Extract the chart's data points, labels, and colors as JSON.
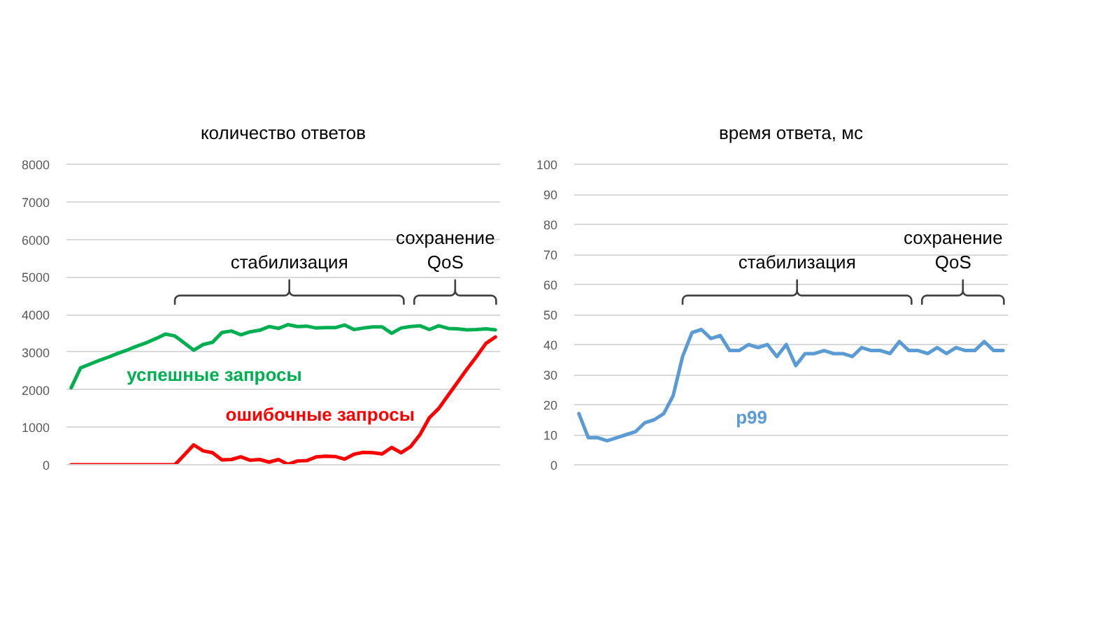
{
  "chart_data": [
    {
      "type": "line",
      "title": "количество ответов",
      "categories": [
        null,
        null,
        null,
        null,
        null,
        null,
        null,
        null,
        null,
        null,
        null,
        null,
        null,
        null,
        null,
        null,
        null,
        null,
        null,
        null,
        null,
        null,
        null,
        null,
        null,
        null,
        null,
        null,
        null,
        null,
        null,
        null,
        null,
        null,
        null,
        null,
        null,
        null,
        null,
        null,
        null,
        null,
        null,
        null,
        null,
        null
      ],
      "series": [
        {
          "name": "успешные запросы",
          "color": "#00b050",
          "values": [
            2050,
            2580,
            2680,
            2780,
            2870,
            2970,
            3060,
            3160,
            3250,
            3360,
            3480,
            3430,
            3240,
            3050,
            3200,
            3260,
            3520,
            3560,
            3460,
            3540,
            3580,
            3680,
            3630,
            3730,
            3680,
            3690,
            3640,
            3650,
            3650,
            3720,
            3600,
            3640,
            3670,
            3670,
            3500,
            3640,
            3680,
            3700,
            3600,
            3700,
            3630,
            3620,
            3590,
            3600,
            3620,
            3590
          ]
        },
        {
          "name": "ошибочные запросы",
          "color": "#ff0000",
          "values": [
            0,
            0,
            0,
            0,
            0,
            0,
            0,
            0,
            0,
            0,
            0,
            0,
            260,
            530,
            370,
            320,
            130,
            140,
            210,
            120,
            140,
            70,
            140,
            10,
            100,
            110,
            210,
            230,
            220,
            150,
            280,
            330,
            320,
            290,
            460,
            320,
            480,
            800,
            1250,
            1500,
            1850,
            2200,
            2550,
            2880,
            3230,
            3400
          ]
        }
      ],
      "ylim": [
        0,
        8000
      ],
      "yticks": [
        0,
        1000,
        2000,
        3000,
        4000,
        5000,
        6000,
        7000,
        8000
      ],
      "grid": "y",
      "tick_labels": "y",
      "annotations": [
        "стабилизация",
        "сохранение\nQoS"
      ]
    },
    {
      "type": "line",
      "title": "время ответа, мс",
      "categories": [
        null,
        null,
        null,
        null,
        null,
        null,
        null,
        null,
        null,
        null,
        null,
        null,
        null,
        null,
        null,
        null,
        null,
        null,
        null,
        null,
        null,
        null,
        null,
        null,
        null,
        null,
        null,
        null,
        null,
        null,
        null,
        null,
        null,
        null,
        null,
        null,
        null,
        null,
        null,
        null,
        null,
        null,
        null,
        null,
        null,
        null
      ],
      "series": [
        {
          "name": "p99",
          "color": "#5b9bd5",
          "values": [
            17,
            9,
            9,
            8,
            9,
            10,
            11,
            14,
            15,
            17,
            23,
            36,
            44,
            45,
            42,
            43,
            38,
            38,
            40,
            39,
            40,
            36,
            40,
            33,
            37,
            37,
            38,
            37,
            37,
            36,
            39,
            38,
            38,
            37,
            41,
            38,
            38,
            37,
            39,
            37,
            39,
            38,
            38,
            41,
            38,
            38
          ]
        }
      ],
      "ylim": [
        0,
        100
      ],
      "yticks": [
        0,
        10,
        20,
        30,
        40,
        50,
        60,
        70,
        80,
        90,
        100
      ],
      "grid": "y",
      "tick_labels": "y",
      "annotations": [
        "стабилизация",
        "сохранение\nQoS"
      ]
    }
  ]
}
